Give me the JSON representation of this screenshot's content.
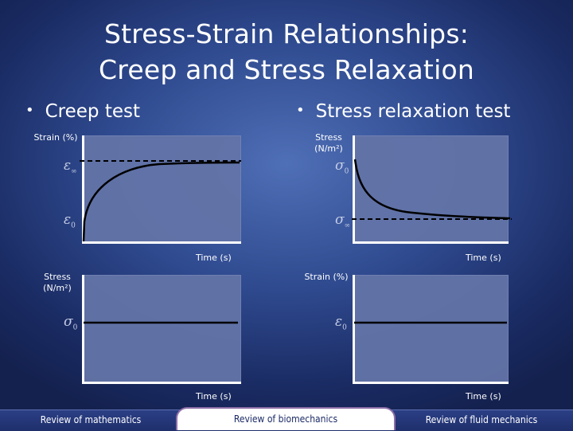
{
  "title": {
    "line1": "Stress-Strain Relationships:",
    "line2": "Creep and Stress Relaxation"
  },
  "bullets": {
    "creep": "Creep test",
    "relaxation": "Stress relaxation test"
  },
  "panels": {
    "creep_strain": {
      "ylabel": "Strain (%)",
      "xlabel": "Time (s)",
      "sym_top": "ε",
      "sym_top_sub": "∞",
      "sym_bottom": "ε",
      "sym_bottom_sub": "0"
    },
    "relax_stress": {
      "ylabel_line1": "Stress",
      "ylabel_line2": "(N/m²)",
      "xlabel": "Time (s)",
      "sym_top": "σ",
      "sym_top_sub": "0",
      "sym_bottom": "σ",
      "sym_bottom_sub": "∞"
    },
    "creep_stress": {
      "ylabel_line1": "Stress",
      "ylabel_line2": "(N/m²)",
      "xlabel": "Time (s)",
      "sym": "σ",
      "sym_sub": "0"
    },
    "relax_strain": {
      "ylabel": "Strain (%)",
      "xlabel": "Time (s)",
      "sym": "ε",
      "sym_sub": "0"
    }
  },
  "footer": {
    "left": "Review of mathematics",
    "center": "Review of biomechanics",
    "right": "Review of fluid mechanics"
  },
  "colors": {
    "curve": "#000000",
    "panel": "#6374a8",
    "axis": "#ffffff"
  }
}
